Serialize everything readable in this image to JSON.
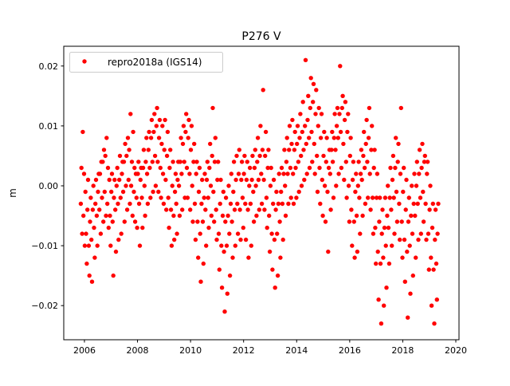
{
  "chart_data": {
    "type": "scatter",
    "title": "P276 V",
    "xlabel": "",
    "ylabel": "m",
    "xlim": [
      2005.22,
      2020.12
    ],
    "ylim": [
      -0.0257,
      0.0233
    ],
    "xticks": [
      2006,
      2008,
      2010,
      2012,
      2014,
      2016,
      2018,
      2020
    ],
    "xtick_labels": [
      "2006",
      "2008",
      "2010",
      "2012",
      "2014",
      "2016",
      "2018",
      "2020"
    ],
    "yticks": [
      -0.02,
      -0.01,
      0.0,
      0.01,
      0.02
    ],
    "ytick_labels": [
      "−0.02",
      "−0.01",
      "0.00",
      "0.01",
      "0.02"
    ],
    "grid": false,
    "legend": {
      "placement": "top-left",
      "entries": [
        "repro2018a (IGS14)"
      ]
    },
    "series": [
      {
        "name": "repro2018a (IGS14)",
        "color": "#ff0000",
        "marker": "circle",
        "x_start": 2005.9,
        "x_step": 0.1,
        "y_groups": [
          [
            -0.003,
            0.003,
            -0.008,
            0.009
          ],
          [
            -0.005,
            0.002,
            -0.01,
            -0.001
          ],
          [
            -0.008,
            -0.013,
            -0.004,
            0.001
          ],
          [
            -0.01,
            -0.015,
            -0.006,
            -0.002
          ],
          [
            -0.009,
            -0.016,
            -0.004,
            0.0
          ],
          [
            -0.007,
            -0.012,
            -0.003,
            0.001
          ],
          [
            -0.005,
            -0.01,
            -0.001,
            0.002
          ],
          [
            -0.004,
            0.002,
            -0.008,
            0.004
          ],
          [
            -0.002,
            0.004,
            -0.006,
            0.006
          ],
          [
            -0.001,
            0.005,
            -0.005,
            0.008
          ],
          [
            -0.003,
            0.003,
            -0.007,
            0.001
          ],
          [
            -0.005,
            -0.01,
            -0.001,
            0.002
          ],
          [
            -0.006,
            -0.015,
            -0.002,
            0.001
          ],
          [
            -0.004,
            -0.011,
            0.0,
            0.003
          ],
          [
            -0.003,
            -0.009,
            0.001,
            0.005
          ],
          [
            -0.002,
            -0.008,
            0.002,
            0.004
          ],
          [
            -0.001,
            0.004,
            -0.006,
            0.007
          ],
          [
            0.0,
            0.005,
            -0.004,
            0.008
          ],
          [
            0.001,
            0.006,
            -0.003,
            0.012
          ],
          [
            0.0,
            0.004,
            -0.005,
            0.009
          ],
          [
            -0.001,
            0.003,
            -0.006,
            0.002
          ],
          [
            -0.002,
            -0.007,
            0.002,
            0.004
          ],
          [
            -0.003,
            -0.01,
            0.001,
            0.003
          ],
          [
            -0.002,
            -0.007,
            0.003,
            0.006
          ],
          [
            0.0,
            -0.005,
            0.004,
            0.008
          ],
          [
            0.002,
            -0.003,
            0.006,
            0.009
          ],
          [
            0.003,
            -0.002,
            0.008,
            0.011
          ],
          [
            0.004,
            -0.001,
            0.009,
            0.012
          ],
          [
            0.005,
            0.0,
            0.01,
            0.013
          ],
          [
            0.004,
            -0.001,
            0.008,
            0.011
          ],
          [
            0.003,
            -0.002,
            0.007,
            0.01
          ],
          [
            0.002,
            -0.003,
            0.006,
            0.011
          ],
          [
            0.001,
            -0.004,
            0.005,
            0.009
          ],
          [
            -0.002,
            -0.007,
            0.003,
            0.006
          ],
          [
            -0.004,
            -0.01,
            0.0,
            0.004
          ],
          [
            -0.005,
            -0.009,
            -0.001,
            0.002
          ],
          [
            -0.003,
            -0.008,
            0.001,
            0.004
          ],
          [
            0.0,
            -0.005,
            0.004,
            0.008
          ],
          [
            0.002,
            -0.004,
            0.007,
            0.01
          ],
          [
            0.004,
            -0.002,
            0.009,
            0.012
          ],
          [
            0.003,
            -0.002,
            0.008,
            0.011
          ],
          [
            0.002,
            -0.004,
            0.006,
            0.01
          ],
          [
            0.0,
            -0.006,
            0.004,
            0.007
          ],
          [
            -0.003,
            -0.009,
            0.002,
            0.004
          ],
          [
            -0.006,
            -0.012,
            -0.001,
            0.003
          ],
          [
            -0.008,
            -0.016,
            -0.003,
            0.001
          ],
          [
            -0.006,
            -0.013,
            -0.002,
            0.002
          ],
          [
            -0.004,
            -0.01,
            0.001,
            0.004
          ],
          [
            -0.002,
            -0.007,
            0.003,
            0.007
          ],
          [
            0.0,
            -0.005,
            0.005,
            0.013
          ],
          [
            -0.001,
            -0.006,
            0.004,
            0.008
          ],
          [
            -0.004,
            -0.009,
            0.001,
            0.004
          ],
          [
            -0.008,
            -0.014,
            -0.003,
            0.001
          ],
          [
            -0.01,
            -0.017,
            -0.005,
            -0.001
          ],
          [
            -0.011,
            -0.021,
            -0.006,
            -0.002
          ],
          [
            -0.01,
            -0.018,
            -0.005,
            0.0
          ],
          [
            -0.008,
            -0.015,
            -0.003,
            0.002
          ],
          [
            -0.006,
            -0.012,
            -0.001,
            0.004
          ],
          [
            -0.004,
            -0.01,
            0.001,
            0.005
          ],
          [
            -0.003,
            -0.008,
            0.002,
            0.006
          ],
          [
            -0.004,
            -0.009,
            0.001,
            0.004
          ],
          [
            -0.002,
            -0.007,
            0.002,
            0.005
          ],
          [
            -0.003,
            -0.009,
            0.001,
            0.004
          ],
          [
            -0.004,
            -0.012,
            0.0,
            0.003
          ],
          [
            -0.003,
            -0.01,
            0.001,
            0.005
          ],
          [
            -0.001,
            -0.006,
            0.003,
            0.006
          ],
          [
            0.0,
            -0.005,
            0.004,
            0.008
          ],
          [
            0.001,
            -0.004,
            0.005,
            0.01
          ],
          [
            0.002,
            -0.003,
            0.006,
            0.016
          ],
          [
            0.001,
            -0.004,
            0.005,
            0.009
          ],
          [
            -0.002,
            -0.007,
            0.003,
            0.006
          ],
          [
            -0.005,
            -0.011,
            0.0,
            0.003
          ],
          [
            -0.008,
            -0.014,
            -0.003,
            0.001
          ],
          [
            -0.009,
            -0.017,
            -0.004,
            -0.001
          ],
          [
            -0.008,
            -0.015,
            -0.003,
            0.002
          ],
          [
            -0.006,
            -0.012,
            -0.001,
            0.003
          ],
          [
            -0.003,
            -0.009,
            0.002,
            0.006
          ],
          [
            0.0,
            -0.005,
            0.004,
            0.008
          ],
          [
            0.002,
            -0.003,
            0.006,
            0.01
          ],
          [
            0.003,
            -0.002,
            0.007,
            0.011
          ],
          [
            0.002,
            -0.003,
            0.006,
            0.009
          ],
          [
            0.003,
            -0.002,
            0.007,
            0.01
          ],
          [
            0.004,
            -0.001,
            0.008,
            0.012
          ],
          [
            0.005,
            0.0,
            0.009,
            0.014
          ],
          [
            0.006,
            0.001,
            0.01,
            0.021
          ],
          [
            0.007,
            0.002,
            0.011,
            0.015
          ],
          [
            0.008,
            0.003,
            0.013,
            0.018
          ],
          [
            0.009,
            0.004,
            0.014,
            0.017
          ],
          [
            0.007,
            0.002,
            0.012,
            0.016
          ],
          [
            0.005,
            -0.001,
            0.01,
            0.013
          ],
          [
            0.003,
            -0.003,
            0.008,
            0.012
          ],
          [
            0.001,
            -0.005,
            0.005,
            0.009
          ],
          [
            0.0,
            -0.006,
            0.004,
            0.008
          ],
          [
            -0.001,
            -0.011,
            0.003,
            0.006
          ],
          [
            0.002,
            -0.004,
            0.006,
            0.009
          ],
          [
            0.004,
            -0.002,
            0.008,
            0.012
          ],
          [
            0.006,
            0.0,
            0.01,
            0.013
          ],
          [
            0.008,
            0.002,
            0.012,
            0.02
          ],
          [
            0.009,
            0.003,
            0.013,
            0.015
          ],
          [
            0.007,
            0.001,
            0.011,
            0.014
          ],
          [
            0.004,
            -0.002,
            0.009,
            0.012
          ],
          [
            0.0,
            -0.006,
            0.005,
            0.008
          ],
          [
            -0.004,
            -0.01,
            0.001,
            0.004
          ],
          [
            -0.006,
            -0.012,
            -0.001,
            0.002
          ],
          [
            -0.005,
            -0.011,
            0.0,
            0.004
          ],
          [
            -0.002,
            -0.008,
            0.002,
            0.006
          ],
          [
            0.001,
            -0.005,
            0.005,
            0.009
          ],
          [
            0.003,
            -0.003,
            0.007,
            0.011
          ],
          [
            0.004,
            -0.002,
            0.008,
            0.013
          ],
          [
            0.002,
            -0.004,
            0.006,
            0.01
          ],
          [
            -0.002,
            -0.008,
            0.003,
            0.006
          ],
          [
            -0.007,
            -0.013,
            -0.002,
            0.002
          ],
          [
            -0.011,
            -0.019,
            -0.006,
            -0.002
          ],
          [
            -0.013,
            -0.023,
            -0.008,
            -0.004
          ],
          [
            -0.012,
            -0.02,
            -0.007,
            -0.002
          ],
          [
            -0.01,
            -0.017,
            -0.005,
            0.0
          ],
          [
            -0.007,
            -0.013,
            -0.002,
            0.003
          ],
          [
            -0.004,
            -0.01,
            0.001,
            0.005
          ],
          [
            -0.002,
            -0.008,
            0.003,
            0.008
          ],
          [
            -0.001,
            -0.006,
            0.004,
            0.007
          ],
          [
            -0.003,
            -0.009,
            0.002,
            0.013
          ],
          [
            -0.006,
            -0.012,
            -0.001,
            0.003
          ],
          [
            -0.009,
            -0.016,
            -0.004,
            0.001
          ],
          [
            -0.011,
            -0.022,
            -0.006,
            -0.002
          ],
          [
            -0.01,
            -0.018,
            -0.005,
            0.0
          ],
          [
            -0.008,
            -0.015,
            -0.003,
            0.002
          ],
          [
            -0.005,
            -0.012,
            0.0,
            0.004
          ],
          [
            -0.003,
            -0.009,
            0.002,
            0.006
          ],
          [
            -0.002,
            -0.008,
            0.003,
            0.007
          ],
          [
            -0.001,
            -0.006,
            0.004,
            0.005
          ],
          [
            -0.003,
            -0.009,
            0.002,
            0.004
          ],
          [
            -0.008,
            -0.014,
            -0.004,
            0.0
          ],
          [
            -0.012,
            -0.02,
            -0.007,
            -0.003
          ],
          [
            -0.014,
            -0.023,
            -0.009,
            -0.004
          ],
          [
            -0.013,
            -0.019,
            -0.008,
            -0.003
          ]
        ]
      }
    ]
  }
}
